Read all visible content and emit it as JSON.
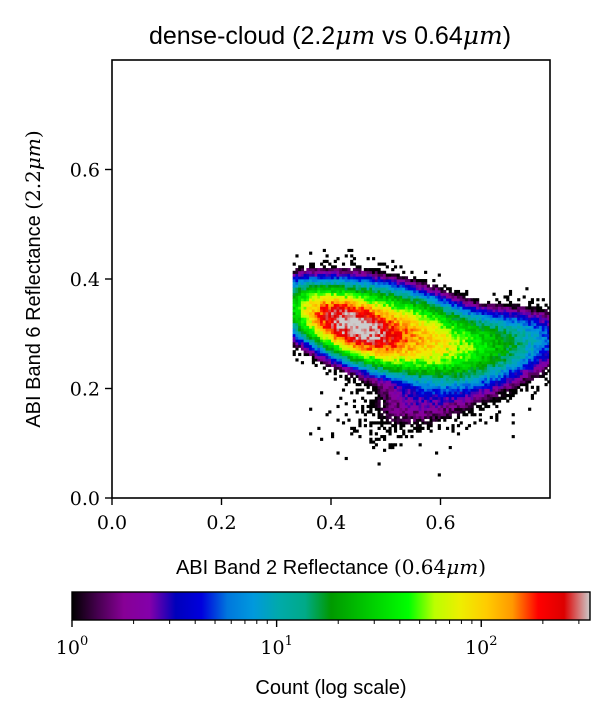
{
  "chart_data": {
    "type": "heatmap",
    "title": "dense-cloud (2.2μm vs 0.64μm)",
    "xlabel": "ABI Band 2 Reflectance (0.64μm)",
    "ylabel": "ABI Band 6 Reflectance (2.2μm)",
    "xlim": [
      0.0,
      0.8
    ],
    "ylim": [
      0.0,
      0.8
    ],
    "xticks": [
      0.0,
      0.2,
      0.4,
      0.6
    ],
    "yticks": [
      0.0,
      0.2,
      0.4,
      0.6
    ],
    "xtick_labels": [
      "0.0",
      "0.2",
      "0.4",
      "0.6"
    ],
    "ytick_labels": [
      "0.0",
      "0.2",
      "0.4",
      "0.6"
    ],
    "bins": 160,
    "grid": false,
    "colormap": "nipy_spectral",
    "colorbar": {
      "label": "Count (log scale)",
      "scale": "log",
      "range": [
        1,
        340
      ],
      "orientation": "horizontal",
      "ticks": [
        1,
        10,
        100
      ],
      "tick_labels": [
        "10^0",
        "10^1",
        "10^2"
      ]
    },
    "density_components": [
      {
        "center": [
          0.44,
          0.315
        ],
        "sigma": [
          0.05,
          0.022
        ],
        "rotation_deg": -22,
        "peak": 340
      },
      {
        "center": [
          0.52,
          0.305
        ],
        "sigma": [
          0.08,
          0.032
        ],
        "rotation_deg": -15,
        "peak": 120
      },
      {
        "center": [
          0.66,
          0.28
        ],
        "sigma": [
          0.08,
          0.028
        ],
        "rotation_deg": 5,
        "peak": 22
      },
      {
        "center": [
          0.6,
          0.2
        ],
        "sigma": [
          0.08,
          0.035
        ],
        "rotation_deg": 20,
        "peak": 3
      }
    ]
  }
}
